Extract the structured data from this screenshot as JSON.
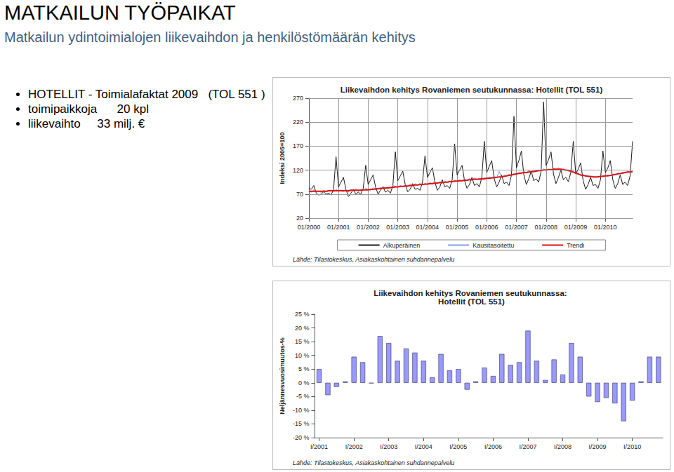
{
  "slide": {
    "title": "MATKAILUN TYÖPAIKAT",
    "subtitle": "Matkailun ydintoimialojen liikevaihdon ja henkilöstömäärän kehitys",
    "bullets": [
      "HOTELLIT - Toimialafaktat 2009   (TOL 551 )",
      "toimipaikkoja      20 kpl",
      "liikevaihto     33 milj. €"
    ]
  },
  "chart_data": [
    {
      "type": "line",
      "title": "Liikevaihdon kehitys Rovaniemen seutukunnassa: Hotellit (TOL 551)",
      "y_label": "Indeksi 2005=100",
      "annotation": "Lähde: Tilastokeskus, Asiakaskohtainen suhdannepalvelu",
      "categories": [
        "01/2000",
        null,
        null,
        null,
        null,
        null,
        null,
        null,
        null,
        null,
        null,
        null,
        "01/2001",
        null,
        null,
        null,
        null,
        null,
        null,
        null,
        null,
        null,
        null,
        null,
        "01/2002",
        null,
        null,
        null,
        null,
        null,
        null,
        null,
        null,
        null,
        null,
        null,
        "01/2003",
        null,
        null,
        null,
        null,
        null,
        null,
        null,
        null,
        null,
        null,
        null,
        "01/2004",
        null,
        null,
        null,
        null,
        null,
        null,
        null,
        null,
        null,
        null,
        null,
        "01/2005",
        null,
        null,
        null,
        null,
        null,
        null,
        null,
        null,
        null,
        null,
        null,
        "01/2006",
        null,
        null,
        null,
        null,
        null,
        null,
        null,
        null,
        null,
        null,
        null,
        "01/2007",
        null,
        null,
        null,
        null,
        null,
        null,
        null,
        null,
        null,
        null,
        null,
        "01/2008",
        null,
        null,
        null,
        null,
        null,
        null,
        null,
        null,
        null,
        null,
        null,
        "01/2009",
        null,
        null,
        null,
        null,
        null,
        null,
        null,
        null,
        null,
        null,
        null,
        "01/2010",
        null,
        null,
        null,
        null,
        null,
        null,
        null,
        null,
        null,
        null,
        null
      ],
      "series": [
        {
          "name": "Alkuperäinen",
          "color": "#1a1a1a",
          "line_style": "solid",
          "values": [
            82,
            80,
            88,
            72,
            68,
            70,
            75,
            70,
            72,
            68,
            80,
            148,
            85,
            95,
            105,
            80,
            65,
            72,
            80,
            70,
            74,
            70,
            82,
            130,
            90,
            100,
            110,
            85,
            70,
            78,
            85,
            74,
            78,
            72,
            88,
            158,
            98,
            108,
            118,
            90,
            75,
            80,
            92,
            80,
            82,
            78,
            95,
            150,
            105,
            115,
            125,
            95,
            78,
            85,
            100,
            85,
            88,
            82,
            100,
            175,
            110,
            120,
            130,
            98,
            82,
            90,
            105,
            88,
            92,
            85,
            105,
            180,
            115,
            128,
            140,
            102,
            85,
            95,
            110,
            92,
            95,
            88,
            110,
            232,
            125,
            140,
            160,
            110,
            90,
            102,
            118,
            98,
            102,
            95,
            118,
            262,
            130,
            142,
            158,
            112,
            92,
            105,
            120,
            100,
            105,
            96,
            115,
            180,
            112,
            122,
            135,
            98,
            80,
            90,
            105,
            88,
            90,
            82,
            100,
            160,
            115,
            125,
            140,
            100,
            82,
            92,
            110,
            90,
            95,
            88,
            108,
            180
          ]
        },
        {
          "name": "Kausitasoitettu",
          "color": "#7f9fe0",
          "line_style": "solid",
          "values": [
            78,
            74,
            79,
            75,
            77,
            73,
            78,
            75,
            76,
            79,
            75,
            80,
            76,
            79,
            75,
            80,
            74,
            79,
            77,
            81,
            76,
            80,
            78,
            82,
            80,
            78,
            84,
            79,
            83,
            80,
            86,
            82,
            85,
            81,
            88,
            86,
            84,
            88,
            85,
            89,
            86,
            91,
            87,
            92,
            88,
            93,
            89,
            92,
            90,
            94,
            91,
            95,
            92,
            96,
            93,
            97,
            94,
            98,
            95,
            99,
            96,
            100,
            97,
            102,
            98,
            103,
            99,
            104,
            100,
            103,
            101,
            105,
            102,
            106,
            103,
            108,
            104,
            118,
            105,
            110,
            107,
            112,
            109,
            114,
            111,
            116,
            113,
            118,
            114,
            119,
            116,
            120,
            117,
            121,
            118,
            123,
            119,
            123,
            120,
            124,
            121,
            125,
            120,
            123,
            119,
            121,
            117,
            118,
            113,
            114,
            108,
            111,
            106,
            109,
            105,
            108,
            104,
            107,
            106,
            109,
            107,
            110,
            108,
            112,
            110,
            114,
            112,
            116,
            114,
            118,
            115,
            119
          ]
        },
        {
          "name": "Trendi",
          "color": "#e01010",
          "line_style": "solid",
          "values": [
            76,
            76,
            76,
            76,
            76,
            76,
            76,
            76,
            77,
            77,
            77,
            77,
            77,
            77,
            77,
            77,
            77,
            78,
            78,
            78,
            78,
            78,
            79,
            79,
            79,
            80,
            80,
            81,
            81,
            82,
            82,
            83,
            83,
            84,
            84,
            85,
            85,
            86,
            86,
            87,
            87,
            88,
            88,
            89,
            89,
            90,
            90,
            91,
            91,
            92,
            92,
            93,
            93,
            94,
            94,
            95,
            95,
            96,
            96,
            97,
            97,
            98,
            98,
            99,
            99,
            100,
            100,
            101,
            101,
            101,
            102,
            102,
            103,
            103,
            104,
            104,
            105,
            106,
            106,
            107,
            108,
            109,
            110,
            111,
            112,
            113,
            114,
            115,
            115,
            116,
            117,
            117,
            118,
            119,
            119,
            120,
            120,
            121,
            121,
            122,
            122,
            122,
            122,
            121,
            120,
            119,
            118,
            116,
            114,
            112,
            110,
            109,
            108,
            107,
            107,
            106,
            106,
            106,
            107,
            107,
            108,
            108,
            109,
            110,
            111,
            112,
            113,
            114,
            115,
            116,
            116,
            117
          ]
        }
      ],
      "ylim": [
        20,
        270
      ],
      "yticks": [
        20,
        70,
        120,
        170,
        220,
        270
      ],
      "grid": true,
      "legend": "bottom"
    },
    {
      "type": "bar",
      "title": "Liikevaihdon kehitys Rovaniemen seutukunnassa: Hotellit (TOL 551)",
      "y_label": "Neljännesvuosimuutos-%",
      "annotation": "Lähde: Tilastokeskus, Asiakaskohtainen suhdannepalvelu",
      "categories": [
        "I/2001",
        null,
        null,
        null,
        "I/2002",
        null,
        null,
        null,
        "I/2003",
        null,
        null,
        null,
        "I/2004",
        null,
        null,
        null,
        "I/2005",
        null,
        null,
        null,
        "I/2006",
        null,
        null,
        null,
        "I/2007",
        null,
        null,
        null,
        "I/2008",
        null,
        null,
        null,
        "I/2009",
        null,
        null,
        null,
        "I/2010",
        null,
        null,
        null
      ],
      "values": [
        5,
        -4.5,
        -1.5,
        0.5,
        9.5,
        7.5,
        -0.2,
        17,
        14.5,
        8,
        12.5,
        11,
        8,
        2,
        10.5,
        4.5,
        5,
        -2.5,
        0.5,
        5.5,
        2.5,
        10.5,
        6.5,
        7.5,
        19,
        8,
        1,
        8.5,
        3,
        14.5,
        9.5,
        -5,
        -7,
        -5.5,
        -7.5,
        -14,
        -6.5,
        0.5,
        9.5,
        9.5
      ],
      "color": "#9999ff",
      "ylim": [
        -20,
        25
      ],
      "yticks": [
        {
          "value": -20,
          "label": "-20 %"
        },
        {
          "value": -15,
          "label": "-15 %"
        },
        {
          "value": -10,
          "label": "-10 %"
        },
        {
          "value": -5,
          "label": "-5 %"
        },
        {
          "value": 0,
          "label": "0 %"
        },
        {
          "value": 5,
          "label": "5 %"
        },
        {
          "value": 10,
          "label": "10 %"
        },
        {
          "value": 15,
          "label": "15 %"
        },
        {
          "value": 20,
          "label": "20 %"
        },
        {
          "value": 25,
          "label": "25 %"
        }
      ],
      "grid": false
    }
  ]
}
